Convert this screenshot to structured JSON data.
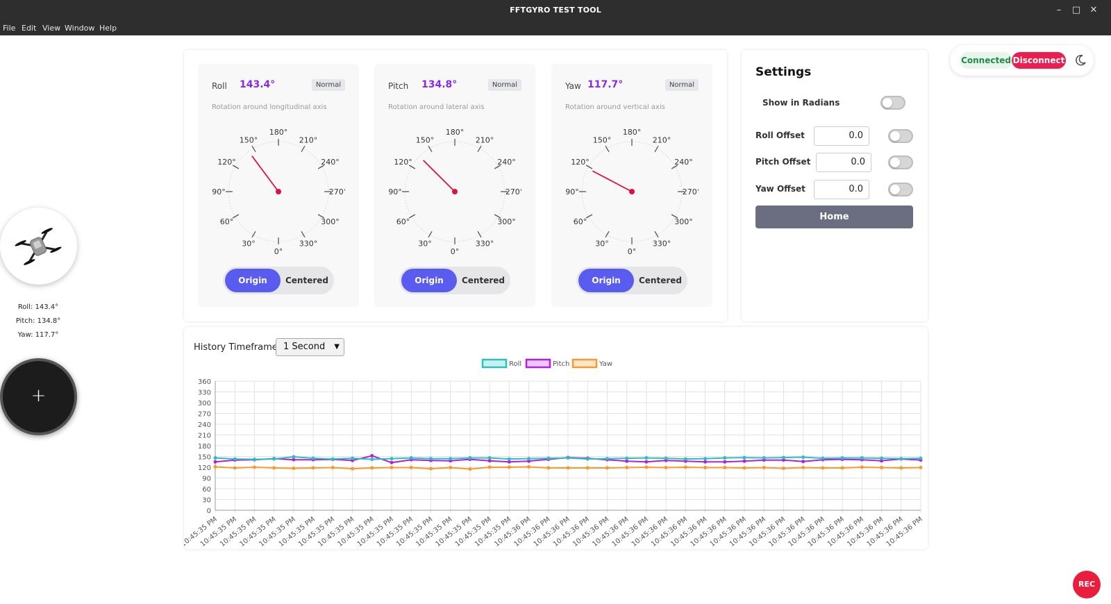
{
  "window": {
    "title": "FFTGYRO TEST TOOL",
    "controls": {
      "minimize": "–",
      "maximize": "□",
      "close": "✕"
    }
  },
  "menu": [
    "File",
    "Edit",
    "View",
    "Window",
    "Help"
  ],
  "sidebar": {
    "drone_icon": "drone-icon",
    "roll_text": "Roll: 143.4°",
    "pitch_text": "Pitch: 134.8°",
    "yaw_text": "Yaw: 117.7°",
    "add_symbol": "+"
  },
  "gauges": [
    {
      "label": "Roll",
      "value": "143.4°",
      "angle": 143.4,
      "badge": "Normal",
      "description": "Rotation around longitudinal axis",
      "mode_on": "Origin",
      "mode_off": "Centered"
    },
    {
      "label": "Pitch",
      "value": "134.8°",
      "angle": 134.8,
      "badge": "Normal",
      "description": "Rotation around lateral axis",
      "mode_on": "Origin",
      "mode_off": "Centered"
    },
    {
      "label": "Yaw",
      "value": "117.7°",
      "angle": 117.7,
      "badge": "Normal",
      "description": "Rotation around vertical axis",
      "mode_on": "Origin",
      "mode_off": "Centered"
    }
  ],
  "dial_ticks": [
    "0°",
    "30°",
    "60°",
    "90°",
    "120°",
    "150°",
    "180°",
    "210°",
    "240°",
    "270°",
    "300°",
    "330°"
  ],
  "colors": {
    "needle": "#e0103f",
    "accent": "#5a5cf0",
    "value_text": "#8a2be2",
    "roll": "#2bbfbf",
    "pitch": "#b31ee6",
    "yaw": "#f79a2e"
  },
  "settings": {
    "title": "Settings",
    "show_radians": "Show in Radians",
    "roll_offset_label": "Roll Offset",
    "roll_offset_value": "0.0",
    "pitch_offset_label": "Pitch Offset",
    "pitch_offset_value": "0.0",
    "yaw_offset_label": "Yaw Offset",
    "yaw_offset_value": "0.0",
    "home_label": "Home"
  },
  "connection": {
    "status": "Connected",
    "disconnect_label": "Disconnect",
    "theme_icon": "moon-icon"
  },
  "history": {
    "label": "History Timeframe:",
    "selected": "1 Second"
  },
  "rec_label": "REC",
  "chart_data": {
    "type": "line",
    "legend": [
      "Roll",
      "Pitch",
      "Yaw"
    ],
    "legend_position": "top-center",
    "grid": true,
    "ylim": [
      0,
      360
    ],
    "yticks": [
      0,
      30,
      60,
      90,
      120,
      150,
      180,
      210,
      240,
      270,
      300,
      330,
      360
    ],
    "x": [
      "10:45:35 PM",
      "10:45:35 PM",
      "10:45:35 PM",
      "10:45:35 PM",
      "10:45:35 PM",
      "10:45:35 PM",
      "10:45:35 PM",
      "10:45:35 PM",
      "10:45:35 PM",
      "10:45:35 PM",
      "10:45:35 PM",
      "10:45:35 PM",
      "10:45:35 PM",
      "10:45:35 PM",
      "10:45:35 PM",
      "10:45:35 PM",
      "10:45:36 PM",
      "10:45:36 PM",
      "10:45:36 PM",
      "10:45:36 PM",
      "10:45:36 PM",
      "10:45:36 PM",
      "10:45:36 PM",
      "10:45:36 PM",
      "10:45:36 PM",
      "10:45:36 PM",
      "10:45:36 PM",
      "10:45:36 PM",
      "10:45:36 PM",
      "10:45:36 PM",
      "10:45:36 PM",
      "10:45:36 PM",
      "10:45:36 PM",
      "10:45:36 PM",
      "10:45:36 PM",
      "10:45:36 PM",
      "10:45:36 PM"
    ],
    "series": [
      {
        "name": "Roll",
        "values": [
          146,
          143,
          142,
          143,
          149,
          145,
          143,
          145,
          142,
          144,
          146,
          144,
          144,
          146,
          146,
          143,
          144,
          145,
          146,
          143,
          144,
          145,
          146,
          145,
          143,
          144,
          146,
          147,
          146,
          147,
          148,
          145,
          146,
          146,
          145,
          144,
          145
        ]
      },
      {
        "name": "Pitch",
        "values": [
          135,
          140,
          141,
          144,
          141,
          141,
          142,
          139,
          152,
          133,
          141,
          139,
          138,
          142,
          138,
          135,
          137,
          142,
          147,
          145,
          141,
          137,
          135,
          139,
          137,
          135,
          135,
          137,
          140,
          140,
          136,
          141,
          142,
          141,
          138,
          143,
          140
        ]
      },
      {
        "name": "Yaw",
        "values": [
          121,
          118,
          120,
          118,
          117,
          118,
          119,
          116,
          118,
          119,
          119,
          116,
          119,
          115,
          120,
          120,
          121,
          118,
          118,
          118,
          118,
          119,
          120,
          119,
          120,
          119,
          119,
          118,
          119,
          117,
          119,
          118,
          118,
          120,
          119,
          118,
          119
        ]
      }
    ]
  }
}
